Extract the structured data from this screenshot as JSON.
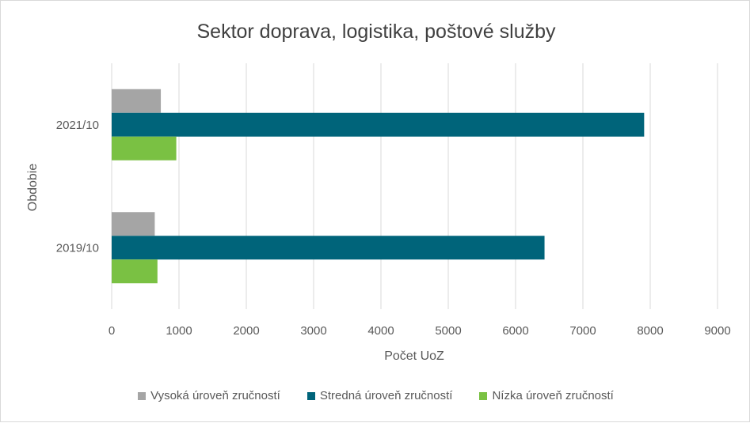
{
  "chart_data": {
    "type": "bar",
    "orientation": "horizontal",
    "title": "Sektor doprava, logistika, poštové služby",
    "xlabel": "Počet UoZ",
    "ylabel": "Obdobie",
    "categories": [
      "2021/10",
      "2019/10"
    ],
    "xlim": [
      0,
      9000
    ],
    "xticks": [
      "0",
      "1000",
      "2000",
      "3000",
      "4000",
      "5000",
      "6000",
      "7000",
      "8000",
      "9000"
    ],
    "grid": true,
    "legend_position": "bottom",
    "series": [
      {
        "name": "Vysoká úroveň zručností",
        "color": "#a5a5a5",
        "values": [
          730,
          640
        ]
      },
      {
        "name": "Stredná úroveň zručností",
        "color": "#00647a",
        "values": [
          7910,
          6430
        ]
      },
      {
        "name": "Nízka úroveň zručností",
        "color": "#7ac143",
        "values": [
          960,
          680
        ]
      }
    ]
  }
}
